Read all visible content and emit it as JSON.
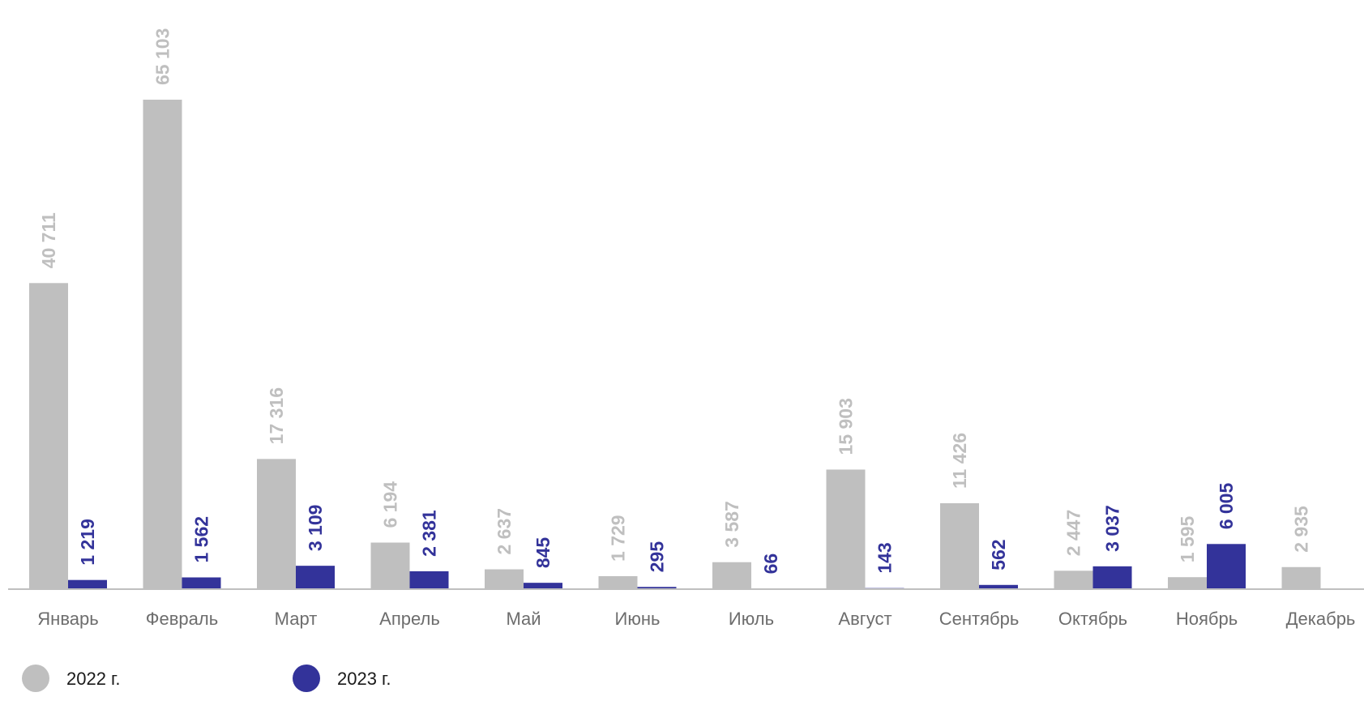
{
  "chart_data": {
    "type": "bar",
    "categories": [
      "Январь",
      "Февраль",
      "Март",
      "Апрель",
      "Май",
      "Июнь",
      "Июль",
      "Август",
      "Сентябрь",
      "Октябрь",
      "Ноябрь",
      "Декабрь"
    ],
    "series": [
      {
        "name": "2022 г.",
        "color": "#bfbfbf",
        "values": [
          40711,
          65103,
          17316,
          6194,
          2637,
          1729,
          3587,
          15903,
          11426,
          2447,
          1595,
          2935
        ],
        "labels": [
          "40 711",
          "65 103",
          "17 316",
          "6 194",
          "2 637",
          "1 729",
          "3 587",
          "15 903",
          "11 426",
          "2 447",
          "1 595",
          "2 935"
        ]
      },
      {
        "name": "2023 г.",
        "color": "#33339a",
        "values": [
          1219,
          1562,
          3109,
          2381,
          845,
          295,
          66,
          143,
          562,
          3037,
          6005,
          null
        ],
        "labels": [
          "1 219",
          "1 562",
          "3 109",
          "2 381",
          "845",
          "295",
          "66",
          "143",
          "562",
          "3 037",
          "6 005",
          null
        ]
      }
    ],
    "title": "",
    "xlabel": "",
    "ylabel": "",
    "ylim": [
      0,
      70000
    ],
    "grid": false,
    "legend_position": "bottom-left"
  }
}
